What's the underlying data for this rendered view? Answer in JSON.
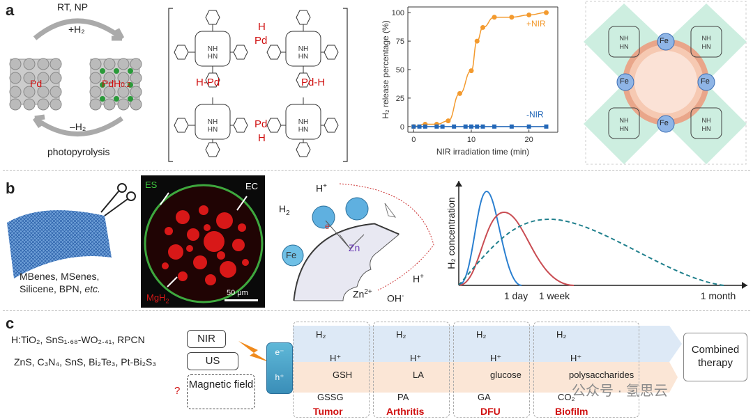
{
  "panel_a": {
    "label": "a",
    "pd": {
      "top": "RT, NP",
      "plus": "+H₂",
      "minus": "–H₂",
      "bottom": "photopyrolysis",
      "pd": "Pd",
      "pdh": "PdH",
      "pdh_sub": "0.2"
    },
    "mof": {
      "h": "H",
      "pd": "Pd",
      "hpd": "H-Pd",
      "pdh": "Pd-H"
    },
    "fe_label": "Fe",
    "chart_data": {
      "type": "scatter",
      "xlabel": "NIR irradiation time (min)",
      "ylabel": "H₂ release percentage (%)",
      "xlim": [
        -1,
        25
      ],
      "ylim": [
        -5,
        105
      ],
      "xticks": [
        "0",
        "10",
        "20"
      ],
      "yticks": [
        "0",
        "25",
        "50",
        "75",
        "100"
      ],
      "series": [
        {
          "name": "+NIR",
          "color": "#f39a2e",
          "x": [
            0,
            2,
            4,
            6,
            8,
            10,
            11,
            12,
            14,
            17,
            20,
            23
          ],
          "y": [
            0,
            2,
            2,
            5,
            29,
            49,
            75,
            87,
            96,
            96,
            98,
            100
          ]
        },
        {
          "name": "-NIR",
          "color": "#2468b8",
          "x": [
            0,
            1,
            2,
            4,
            5,
            7,
            9,
            10,
            11,
            12,
            14,
            17,
            20,
            23
          ],
          "y": [
            0,
            0,
            0,
            0,
            0,
            0,
            0,
            0,
            0,
            0,
            0,
            0,
            0,
            0
          ]
        }
      ]
    }
  },
  "panel_b": {
    "label": "b",
    "materials": [
      "MBenes, MSenes,",
      "Silicene, BPN, "
    ],
    "etc": "etc.",
    "micrograph": {
      "es": "ES",
      "ec": "EC",
      "mgh": "MgH",
      "mgh_sub": "2",
      "scale": "50 μm"
    },
    "mech": {
      "h2": "H",
      "h2_sub": "2",
      "hplus_top": "H",
      "fe": "Fe",
      "zn": "Zn",
      "e": "e",
      "zn2": "Zn",
      "oh": "OH",
      "hplus": "H"
    },
    "conc_chart": {
      "ylabel": "H₂ concentration",
      "xticks": [
        "1 day",
        "1 week",
        "1 month"
      ],
      "series": [
        {
          "color": "#2a7fd0"
        },
        {
          "color": "#c94c52"
        },
        {
          "color": "#1f7f8c"
        }
      ]
    }
  },
  "panel_c": {
    "label": "c",
    "rows": [
      {
        "materials": "H:TiO₂, SnS₁.₆₈-WO₂.₄₁, RPCN",
        "stimulus": "NIR"
      },
      {
        "materials": "ZnS, C₃N₄, SnS, Bi₂Te₃, Pt-Bi₂S₃",
        "stimulus": "US"
      },
      {
        "materials": "?",
        "stimulus": "Magnetic field"
      }
    ],
    "electron": "e⁻",
    "hole": "h⁺",
    "targets": [
      {
        "top": "H₂",
        "hplus": "H⁺",
        "sub": "GSH",
        "prod": "GSSG",
        "name": "Tumor"
      },
      {
        "top": "H₂",
        "hplus": "H⁺",
        "sub": "LA",
        "prod": "PA",
        "name": "Arthritis"
      },
      {
        "top": "H₂",
        "hplus": "H⁺",
        "sub": "glucose",
        "prod": "GA",
        "name": "DFU"
      },
      {
        "top": "H₂",
        "hplus": "H⁺",
        "sub": "polysaccharides",
        "prod": "CO₂",
        "name": "Biofilm"
      }
    ],
    "result": "Combined therapy",
    "watermark": "公众号 · 氢思云"
  }
}
